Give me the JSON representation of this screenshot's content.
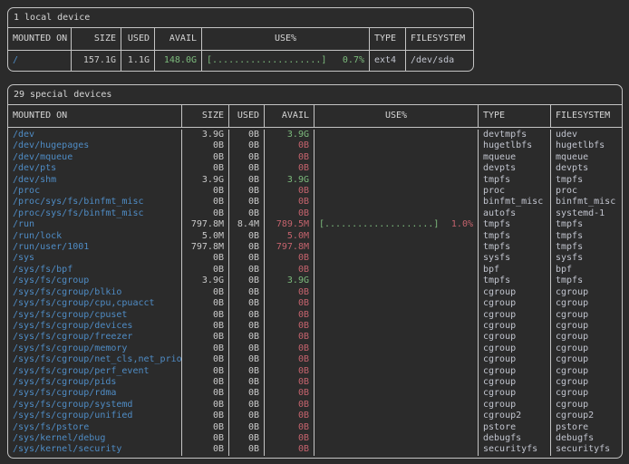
{
  "colors": {
    "bg": "#2b2b2b",
    "border": "#c4c4c4",
    "heading": "#d6d6d6",
    "text": "#cacaca",
    "dim": "#c2c5cf",
    "blue": "#4f8cc5",
    "green": "#7cba7c",
    "red": "#c4636d"
  },
  "table1": {
    "title": "1 local device",
    "columns": [
      "MOUNTED ON",
      "SIZE",
      "USED",
      "AVAIL",
      "USE%",
      "TYPE",
      "FILESYSTEM"
    ],
    "rows": [
      {
        "mount": "/",
        "size": "157.1G",
        "used": "1.1G",
        "avail": "148.0G",
        "avail_color": "green",
        "use_bar": "[....................]",
        "use_pct": "0.7%",
        "pct_color": "green",
        "type": "ext4",
        "fs": "/dev/sda"
      }
    ]
  },
  "table2": {
    "title": "29 special devices",
    "columns": [
      "MOUNTED ON",
      "SIZE",
      "USED",
      "AVAIL",
      "USE%",
      "TYPE",
      "FILESYSTEM"
    ],
    "rows": [
      {
        "mount": "/dev",
        "size": "3.9G",
        "used": "0B",
        "avail": "3.9G",
        "avail_color": "green",
        "use_bar": "",
        "use_pct": "",
        "pct_color": "",
        "type": "devtmpfs",
        "fs": "udev"
      },
      {
        "mount": "/dev/hugepages",
        "size": "0B",
        "used": "0B",
        "avail": "0B",
        "avail_color": "red",
        "use_bar": "",
        "use_pct": "",
        "pct_color": "",
        "type": "hugetlbfs",
        "fs": "hugetlbfs"
      },
      {
        "mount": "/dev/mqueue",
        "size": "0B",
        "used": "0B",
        "avail": "0B",
        "avail_color": "red",
        "use_bar": "",
        "use_pct": "",
        "pct_color": "",
        "type": "mqueue",
        "fs": "mqueue"
      },
      {
        "mount": "/dev/pts",
        "size": "0B",
        "used": "0B",
        "avail": "0B",
        "avail_color": "red",
        "use_bar": "",
        "use_pct": "",
        "pct_color": "",
        "type": "devpts",
        "fs": "devpts"
      },
      {
        "mount": "/dev/shm",
        "size": "3.9G",
        "used": "0B",
        "avail": "3.9G",
        "avail_color": "green",
        "use_bar": "",
        "use_pct": "",
        "pct_color": "",
        "type": "tmpfs",
        "fs": "tmpfs"
      },
      {
        "mount": "/proc",
        "size": "0B",
        "used": "0B",
        "avail": "0B",
        "avail_color": "red",
        "use_bar": "",
        "use_pct": "",
        "pct_color": "",
        "type": "proc",
        "fs": "proc"
      },
      {
        "mount": "/proc/sys/fs/binfmt_misc",
        "size": "0B",
        "used": "0B",
        "avail": "0B",
        "avail_color": "red",
        "use_bar": "",
        "use_pct": "",
        "pct_color": "",
        "type": "binfmt_misc",
        "fs": "binfmt_misc"
      },
      {
        "mount": "/proc/sys/fs/binfmt_misc",
        "size": "0B",
        "used": "0B",
        "avail": "0B",
        "avail_color": "red",
        "use_bar": "",
        "use_pct": "",
        "pct_color": "",
        "type": "autofs",
        "fs": "systemd-1"
      },
      {
        "mount": "/run",
        "size": "797.8M",
        "used": "8.4M",
        "avail": "789.5M",
        "avail_color": "red",
        "use_bar": "[....................]",
        "use_pct": "1.0%",
        "pct_color": "red",
        "type": "tmpfs",
        "fs": "tmpfs"
      },
      {
        "mount": "/run/lock",
        "size": "5.0M",
        "used": "0B",
        "avail": "5.0M",
        "avail_color": "red",
        "use_bar": "",
        "use_pct": "",
        "pct_color": "",
        "type": "tmpfs",
        "fs": "tmpfs"
      },
      {
        "mount": "/run/user/1001",
        "size": "797.8M",
        "used": "0B",
        "avail": "797.8M",
        "avail_color": "red",
        "use_bar": "",
        "use_pct": "",
        "pct_color": "",
        "type": "tmpfs",
        "fs": "tmpfs"
      },
      {
        "mount": "/sys",
        "size": "0B",
        "used": "0B",
        "avail": "0B",
        "avail_color": "red",
        "use_bar": "",
        "use_pct": "",
        "pct_color": "",
        "type": "sysfs",
        "fs": "sysfs"
      },
      {
        "mount": "/sys/fs/bpf",
        "size": "0B",
        "used": "0B",
        "avail": "0B",
        "avail_color": "red",
        "use_bar": "",
        "use_pct": "",
        "pct_color": "",
        "type": "bpf",
        "fs": "bpf"
      },
      {
        "mount": "/sys/fs/cgroup",
        "size": "3.9G",
        "used": "0B",
        "avail": "3.9G",
        "avail_color": "green",
        "use_bar": "",
        "use_pct": "",
        "pct_color": "",
        "type": "tmpfs",
        "fs": "tmpfs"
      },
      {
        "mount": "/sys/fs/cgroup/blkio",
        "size": "0B",
        "used": "0B",
        "avail": "0B",
        "avail_color": "red",
        "use_bar": "",
        "use_pct": "",
        "pct_color": "",
        "type": "cgroup",
        "fs": "cgroup"
      },
      {
        "mount": "/sys/fs/cgroup/cpu,cpuacct",
        "size": "0B",
        "used": "0B",
        "avail": "0B",
        "avail_color": "red",
        "use_bar": "",
        "use_pct": "",
        "pct_color": "",
        "type": "cgroup",
        "fs": "cgroup"
      },
      {
        "mount": "/sys/fs/cgroup/cpuset",
        "size": "0B",
        "used": "0B",
        "avail": "0B",
        "avail_color": "red",
        "use_bar": "",
        "use_pct": "",
        "pct_color": "",
        "type": "cgroup",
        "fs": "cgroup"
      },
      {
        "mount": "/sys/fs/cgroup/devices",
        "size": "0B",
        "used": "0B",
        "avail": "0B",
        "avail_color": "red",
        "use_bar": "",
        "use_pct": "",
        "pct_color": "",
        "type": "cgroup",
        "fs": "cgroup"
      },
      {
        "mount": "/sys/fs/cgroup/freezer",
        "size": "0B",
        "used": "0B",
        "avail": "0B",
        "avail_color": "red",
        "use_bar": "",
        "use_pct": "",
        "pct_color": "",
        "type": "cgroup",
        "fs": "cgroup"
      },
      {
        "mount": "/sys/fs/cgroup/memory",
        "size": "0B",
        "used": "0B",
        "avail": "0B",
        "avail_color": "red",
        "use_bar": "",
        "use_pct": "",
        "pct_color": "",
        "type": "cgroup",
        "fs": "cgroup"
      },
      {
        "mount": "/sys/fs/cgroup/net_cls,net_prio",
        "size": "0B",
        "used": "0B",
        "avail": "0B",
        "avail_color": "red",
        "use_bar": "",
        "use_pct": "",
        "pct_color": "",
        "type": "cgroup",
        "fs": "cgroup"
      },
      {
        "mount": "/sys/fs/cgroup/perf_event",
        "size": "0B",
        "used": "0B",
        "avail": "0B",
        "avail_color": "red",
        "use_bar": "",
        "use_pct": "",
        "pct_color": "",
        "type": "cgroup",
        "fs": "cgroup"
      },
      {
        "mount": "/sys/fs/cgroup/pids",
        "size": "0B",
        "used": "0B",
        "avail": "0B",
        "avail_color": "red",
        "use_bar": "",
        "use_pct": "",
        "pct_color": "",
        "type": "cgroup",
        "fs": "cgroup"
      },
      {
        "mount": "/sys/fs/cgroup/rdma",
        "size": "0B",
        "used": "0B",
        "avail": "0B",
        "avail_color": "red",
        "use_bar": "",
        "use_pct": "",
        "pct_color": "",
        "type": "cgroup",
        "fs": "cgroup"
      },
      {
        "mount": "/sys/fs/cgroup/systemd",
        "size": "0B",
        "used": "0B",
        "avail": "0B",
        "avail_color": "red",
        "use_bar": "",
        "use_pct": "",
        "pct_color": "",
        "type": "cgroup",
        "fs": "cgroup"
      },
      {
        "mount": "/sys/fs/cgroup/unified",
        "size": "0B",
        "used": "0B",
        "avail": "0B",
        "avail_color": "red",
        "use_bar": "",
        "use_pct": "",
        "pct_color": "",
        "type": "cgroup2",
        "fs": "cgroup2"
      },
      {
        "mount": "/sys/fs/pstore",
        "size": "0B",
        "used": "0B",
        "avail": "0B",
        "avail_color": "red",
        "use_bar": "",
        "use_pct": "",
        "pct_color": "",
        "type": "pstore",
        "fs": "pstore"
      },
      {
        "mount": "/sys/kernel/debug",
        "size": "0B",
        "used": "0B",
        "avail": "0B",
        "avail_color": "red",
        "use_bar": "",
        "use_pct": "",
        "pct_color": "",
        "type": "debugfs",
        "fs": "debugfs"
      },
      {
        "mount": "/sys/kernel/security",
        "size": "0B",
        "used": "0B",
        "avail": "0B",
        "avail_color": "red",
        "use_bar": "",
        "use_pct": "",
        "pct_color": "",
        "type": "securityfs",
        "fs": "securityfs"
      }
    ]
  }
}
